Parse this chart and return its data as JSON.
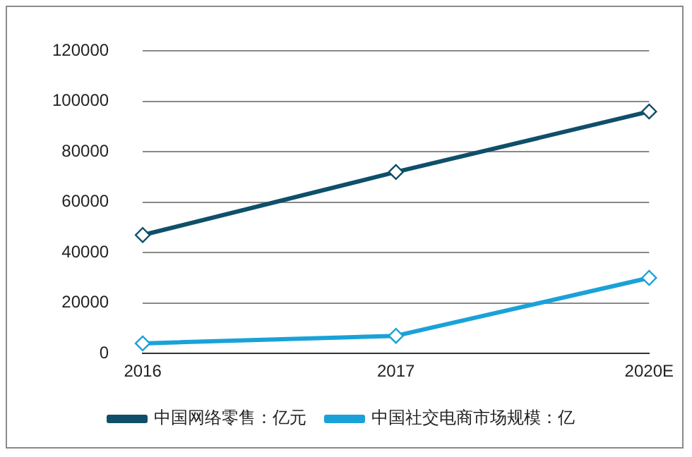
{
  "chart_data": {
    "type": "line",
    "categories": [
      "2016",
      "2017",
      "2020E"
    ],
    "series": [
      {
        "name": "中国网络零售：亿元",
        "color": "#0f4f6a",
        "values": [
          47000,
          72000,
          96000
        ]
      },
      {
        "name": "中国社交电商市场规模：亿",
        "color": "#1aa2d8",
        "values": [
          4000,
          7000,
          30000
        ]
      }
    ],
    "ylim": [
      0,
      120000
    ],
    "yticks": [
      0,
      20000,
      40000,
      60000,
      80000,
      100000,
      120000
    ],
    "grid": "y",
    "legend": "bottom",
    "marker": "diamond",
    "line_style": "solid"
  }
}
